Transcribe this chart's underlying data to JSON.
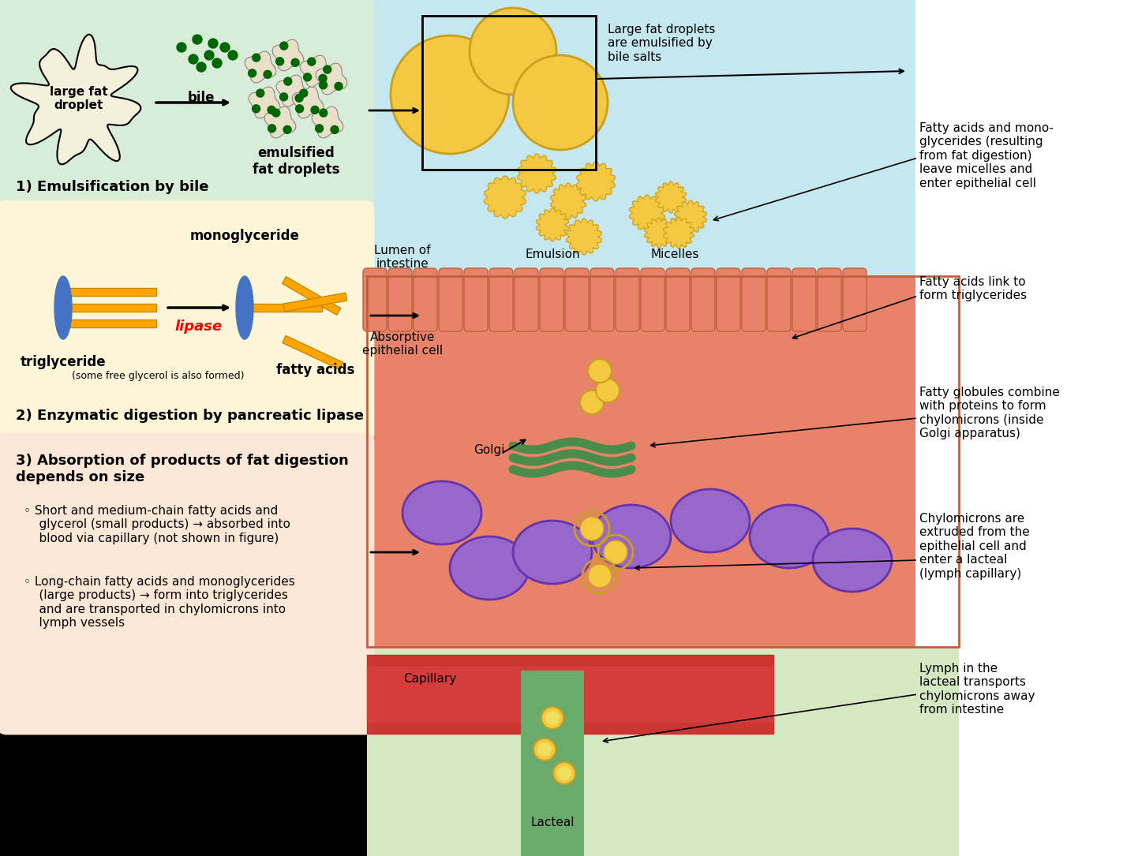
{
  "bg_color": "#000000",
  "box1_color": "#d8edd8",
  "box2_color": "#fdf5d8",
  "box3_color": "#fde8d8",
  "right_panel_color": "#cce8f0",
  "cell_color": "#e8836a",
  "title1": "1) Emulsification by bile",
  "title2": "2) Enzymatic digestion by pancreatic lipase",
  "title3": "3) Absorption of products of fat digestion\ndepends on size",
  "box3_bullet1": "Short and medium-chain fatty acids and\n    glycerol (small products) → absorbed into\n    blood via capillary (not shown in figure)",
  "box3_bullet2": "Long-chain fatty acids and monoglycerides\n    (large products) → form into triglycerides\n    and are transported in chylomicrons into\n    lymph vessels",
  "label_large_fat": "large fat\ndroplet",
  "label_bile": "bile",
  "label_emulsified": "emulsified\nfat droplets",
  "label_triglyceride": "triglyceride",
  "label_monoglyceride": "monoglyceride",
  "label_fatty_acids": "fatty acids",
  "label_lipase": "lipase",
  "label_glycerol": "(some free glycerol is also formed)",
  "label_lumen": "Lumen of\nintestine",
  "label_emulsion": "Emulsion",
  "label_micelles": "Micelles",
  "label_absorptive": "Absorptive\nepithelial cell",
  "label_golgi": "Golgi",
  "label_capillary": "Capillary",
  "label_lacteal": "Lacteal",
  "label_large_drops": "Large fat droplets\nare emulsified by\nbile salts",
  "ann1": "Fatty acids and mono-\nglycerides (resulting\nfrom fat digestion)\nleave micelles and\nenter epithelial cell",
  "ann2": "Fatty acids link to\nform triglycerides",
  "ann3": "Fatty globules combine\nwith proteins to form\nchylomicrons (inside\nGolgi apparatus)",
  "ann4": "Chylomicrons are\nextruded from the\nepithelial cell and\nenter a lacteal\n(lymph capillary)",
  "ann5": "Lymph in the\nlacteal transports\nchylomicrons away\nfrom intestine"
}
